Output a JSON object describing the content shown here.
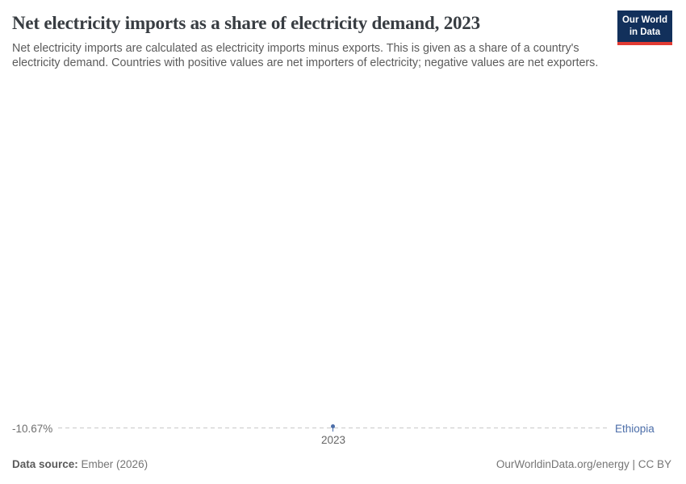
{
  "header": {
    "title": "Net electricity imports as a share of electricity demand, 2023",
    "subtitle": "Net electricity imports are calculated as electricity imports minus exports. This is given as a share of a country's electricity demand. Countries with positive values are net importers of electricity; negative values are net exporters.",
    "logo": {
      "line1": "Our World",
      "line2": "in Data",
      "background_color": "#12305b",
      "stripe_color": "#e23b33"
    }
  },
  "chart_data": {
    "type": "line",
    "title": "Net electricity imports as a share of electricity demand, 2023",
    "x": [
      2023
    ],
    "series": [
      {
        "name": "Ethiopia",
        "values": [
          -10.67
        ],
        "color": "#4c6ea9"
      }
    ],
    "unit": "%",
    "y_value_label": "-10.67%",
    "x_tick_labels": [
      "2023"
    ],
    "gridline_style": "dashed",
    "gridline_color": "#c9c9c9",
    "legend_position": "right-of-line"
  },
  "labels": {
    "y_value": "-10.67%",
    "entity": "Ethiopia",
    "x_tick": "2023"
  },
  "footer": {
    "datasource_label": "Data source:",
    "datasource_value": " Ember (2026)",
    "credit": "OurWorldinData.org/energy | CC BY"
  }
}
